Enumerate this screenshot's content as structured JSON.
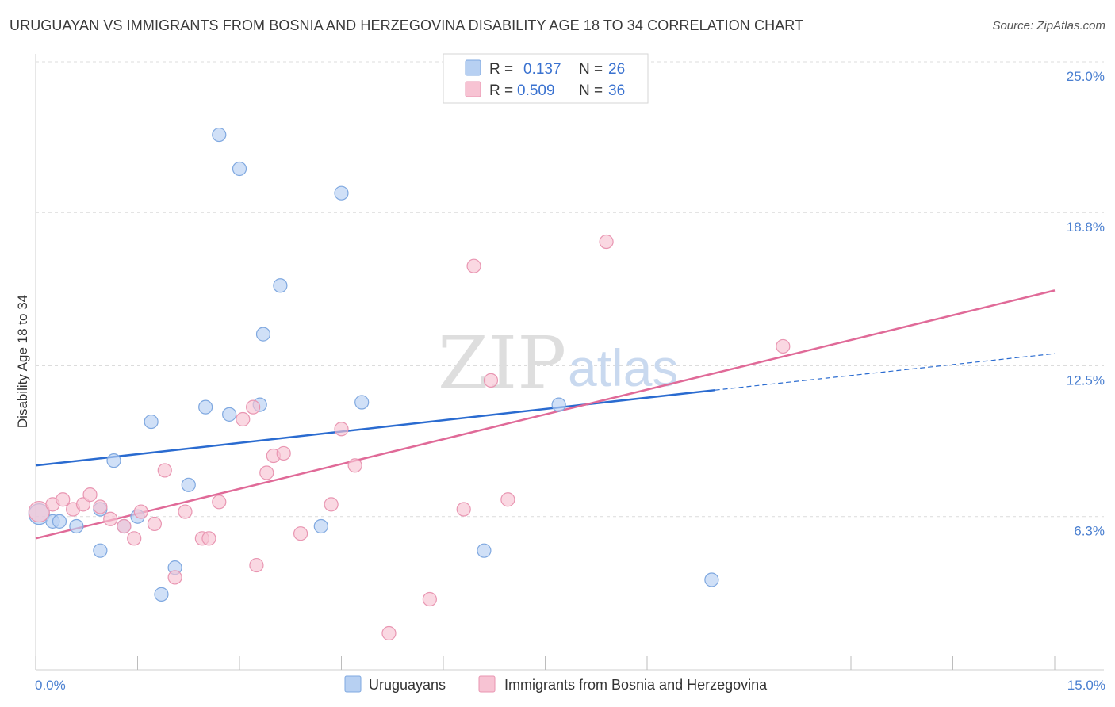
{
  "title": "URUGUAYAN VS IMMIGRANTS FROM BOSNIA AND HERZEGOVINA DISABILITY AGE 18 TO 34 CORRELATION CHART",
  "source": "Source: ZipAtlas.com",
  "watermark": {
    "zip": "ZIP",
    "atlas": "atlas"
  },
  "colors": {
    "blue_fill": "#b7d0f2",
    "blue_stroke": "#7fa8e0",
    "blue_line": "#2a6bd0",
    "pink_fill": "#f7c3d3",
    "pink_stroke": "#e996b2",
    "pink_line": "#e06a98",
    "grid": "#dcdcdc",
    "axis_label": "#4a7fd0"
  },
  "chart_data": {
    "type": "scatter",
    "title": "URUGUAYAN VS IMMIGRANTS FROM BOSNIA AND HERZEGOVINA DISABILITY AGE 18 TO 34 CORRELATION CHART",
    "xlabel": "",
    "ylabel": "Disability Age 18 to 34",
    "xlim": [
      0.0,
      15.0
    ],
    "ylim": [
      0.0,
      25.0
    ],
    "x_tick_labels": {
      "left": "0.0%",
      "right": "15.0%"
    },
    "y_ticks": [
      {
        "value": 6.3,
        "label": "6.3%"
      },
      {
        "value": 12.5,
        "label": "12.5%"
      },
      {
        "value": 18.8,
        "label": "18.8%"
      },
      {
        "value": 25.0,
        "label": "25.0%"
      }
    ],
    "legend": [
      {
        "label": "R =",
        "r": "0.137",
        "n_label": "N =",
        "n": "26",
        "series": "Uruguayans"
      },
      {
        "label": "R =",
        "r": "0.509",
        "n_label": "N =",
        "n": "36",
        "series": "Immigrants from Bosnia and Herzegovina"
      }
    ],
    "series": [
      {
        "name": "Uruguayans",
        "color": "blue",
        "trend": {
          "x0": 0.0,
          "y0": 8.4,
          "x1": 10.0,
          "y1": 11.5,
          "dash_to_x": 15.0,
          "dash_to_y": 13.0
        },
        "points": [
          [
            0.05,
            6.4,
            22
          ],
          [
            0.25,
            6.1,
            10
          ],
          [
            0.35,
            6.1,
            10
          ],
          [
            0.6,
            5.9,
            10
          ],
          [
            0.95,
            6.6,
            10
          ],
          [
            0.95,
            4.9,
            10
          ],
          [
            1.15,
            8.6,
            10
          ],
          [
            1.3,
            5.9,
            10
          ],
          [
            1.5,
            6.3,
            10
          ],
          [
            1.7,
            10.2,
            10
          ],
          [
            1.85,
            3.1,
            10
          ],
          [
            2.05,
            4.2,
            10
          ],
          [
            2.25,
            7.6,
            10
          ],
          [
            2.5,
            10.8,
            10
          ],
          [
            2.7,
            22.0,
            10
          ],
          [
            2.85,
            10.5,
            10
          ],
          [
            3.0,
            20.6,
            10
          ],
          [
            3.3,
            10.9,
            10
          ],
          [
            3.35,
            13.8,
            10
          ],
          [
            3.6,
            15.8,
            10
          ],
          [
            4.2,
            5.9,
            10
          ],
          [
            4.5,
            19.6,
            10
          ],
          [
            4.8,
            11.0,
            10
          ],
          [
            6.6,
            4.9,
            10
          ],
          [
            7.7,
            10.9,
            10
          ],
          [
            9.95,
            3.7,
            10
          ]
        ]
      },
      {
        "name": "Immigrants from Bosnia and Herzegovina",
        "color": "pink",
        "trend": {
          "x0": 0.0,
          "y0": 5.4,
          "x1": 15.0,
          "y1": 15.6
        },
        "points": [
          [
            0.05,
            6.5,
            18
          ],
          [
            0.25,
            6.8,
            10
          ],
          [
            0.4,
            7.0,
            10
          ],
          [
            0.55,
            6.6,
            10
          ],
          [
            0.7,
            6.8,
            10
          ],
          [
            0.8,
            7.2,
            10
          ],
          [
            0.95,
            6.7,
            10
          ],
          [
            1.1,
            6.2,
            10
          ],
          [
            1.3,
            5.9,
            10
          ],
          [
            1.45,
            5.4,
            10
          ],
          [
            1.55,
            6.5,
            10
          ],
          [
            1.75,
            6.0,
            10
          ],
          [
            1.9,
            8.2,
            10
          ],
          [
            2.05,
            3.8,
            10
          ],
          [
            2.2,
            6.5,
            10
          ],
          [
            2.45,
            5.4,
            10
          ],
          [
            2.55,
            5.4,
            10
          ],
          [
            2.7,
            6.9,
            10
          ],
          [
            3.05,
            10.3,
            10
          ],
          [
            3.2,
            10.8,
            10
          ],
          [
            3.25,
            4.3,
            10
          ],
          [
            3.4,
            8.1,
            10
          ],
          [
            3.5,
            8.8,
            10
          ],
          [
            3.65,
            8.9,
            10
          ],
          [
            3.9,
            5.6,
            10
          ],
          [
            4.35,
            6.8,
            10
          ],
          [
            4.5,
            9.9,
            10
          ],
          [
            4.7,
            8.4,
            10
          ],
          [
            5.2,
            1.5,
            10
          ],
          [
            5.8,
            2.9,
            10
          ],
          [
            6.3,
            6.6,
            10
          ],
          [
            6.45,
            16.6,
            10
          ],
          [
            6.7,
            11.9,
            10
          ],
          [
            6.95,
            7.0,
            10
          ],
          [
            8.4,
            17.6,
            10
          ],
          [
            11.0,
            13.3,
            10
          ]
        ]
      }
    ]
  }
}
